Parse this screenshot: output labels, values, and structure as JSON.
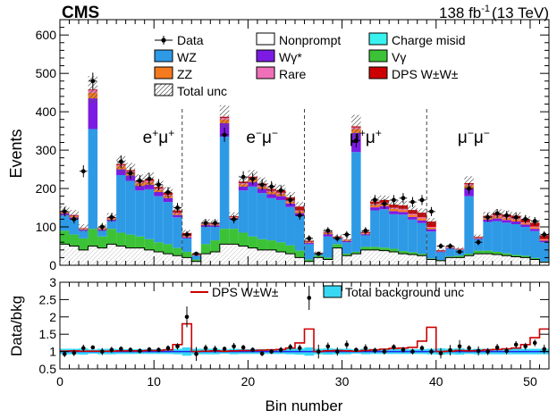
{
  "header": {
    "experiment": "CMS",
    "luminosity": "138 fb",
    "lumi_exp": "-1",
    "energy": "(13 TeV)"
  },
  "chart_data": [
    {
      "type": "bar",
      "stacked": true,
      "ylabel": "Events",
      "ylim": [
        0,
        640
      ],
      "yticks": [
        0,
        100,
        200,
        300,
        400,
        500,
        600
      ],
      "x": [
        0,
        1,
        2,
        3,
        4,
        5,
        6,
        7,
        8,
        9,
        10,
        11,
        12,
        13,
        14,
        15,
        16,
        17,
        18,
        19,
        20,
        21,
        22,
        23,
        24,
        25,
        26,
        27,
        28,
        29,
        30,
        31,
        32,
        33,
        34,
        35,
        36,
        37,
        38,
        39,
        40,
        41,
        42,
        43,
        44,
        45,
        46,
        47,
        48,
        49,
        50,
        51
      ],
      "xlim": [
        0,
        52
      ],
      "region_labels": [
        {
          "base": "e",
          "sup": "+",
          "base2": "μ",
          "sup2": "+",
          "x": 10.5
        },
        {
          "base": "e",
          "sup": "−",
          "base2": "μ",
          "sup2": "−",
          "x": 21.5
        },
        {
          "base": "μ",
          "sup": "+",
          "base2": "μ",
          "sup2": "+",
          "x": 32.5
        },
        {
          "base": "μ",
          "sup": "−",
          "base2": "μ",
          "sup2": "−",
          "x": 44
        }
      ],
      "region_dividers": [
        13,
        26,
        39
      ],
      "series": [
        {
          "name": "Nonprompt",
          "color": "#ffffff",
          "values": [
            55,
            50,
            40,
            50,
            45,
            55,
            50,
            45,
            45,
            40,
            35,
            30,
            25,
            20,
            10,
            30,
            35,
            55,
            55,
            50,
            45,
            40,
            40,
            35,
            30,
            20,
            10,
            20,
            15,
            45,
            25,
            30,
            40,
            40,
            38,
            35,
            30,
            28,
            25,
            15,
            12,
            20,
            20,
            25,
            30,
            30,
            28,
            25,
            22,
            20,
            15,
            8
          ]
        },
        {
          "name": "Vγ",
          "color": "#3cc236",
          "values": [
            35,
            30,
            30,
            45,
            30,
            40,
            35,
            35,
            30,
            28,
            25,
            25,
            20,
            15,
            5,
            25,
            30,
            40,
            40,
            35,
            30,
            28,
            25,
            25,
            22,
            18,
            5,
            5,
            5,
            10,
            5,
            5,
            8,
            8,
            8,
            8,
            7,
            6,
            5,
            3,
            2,
            3,
            5,
            5,
            8,
            8,
            7,
            6,
            5,
            5,
            4,
            2
          ]
        },
        {
          "name": "WZ",
          "color": "#2e9ae6",
          "values": [
            40,
            40,
            20,
            260,
            15,
            20,
            150,
            140,
            120,
            130,
            120,
            110,
            80,
            35,
            10,
            45,
            35,
            240,
            25,
            110,
            130,
            120,
            110,
            110,
            100,
            90,
            40,
            5,
            55,
            15,
            30,
            260,
            30,
            95,
            100,
            90,
            95,
            85,
            80,
            70,
            20,
            20,
            15,
            150,
            30,
            75,
            80,
            80,
            80,
            75,
            70,
            50
          ]
        },
        {
          "name": "Wγ*",
          "color": "#7c1be3",
          "values": [
            5,
            5,
            3,
            80,
            3,
            4,
            15,
            14,
            12,
            12,
            11,
            10,
            6,
            3,
            1,
            5,
            4,
            35,
            3,
            10,
            12,
            11,
            10,
            10,
            9,
            8,
            3,
            1,
            6,
            2,
            3,
            50,
            3,
            8,
            8,
            8,
            7,
            7,
            7,
            6,
            2,
            2,
            1,
            20,
            2,
            6,
            7,
            7,
            7,
            6,
            6,
            4
          ]
        },
        {
          "name": "ZZ",
          "color": "#f57a1e",
          "values": [
            3,
            3,
            2,
            15,
            2,
            3,
            8,
            8,
            7,
            7,
            6,
            6,
            4,
            2,
            1,
            3,
            2,
            10,
            2,
            6,
            7,
            6,
            6,
            6,
            5,
            5,
            2,
            1,
            3,
            1,
            2,
            10,
            2,
            6,
            6,
            6,
            5,
            5,
            5,
            4,
            1,
            1,
            1,
            8,
            1,
            4,
            5,
            5,
            5,
            4,
            4,
            3
          ]
        },
        {
          "name": "Rare",
          "color": "#ef70b8",
          "values": [
            1,
            1,
            1,
            6,
            1,
            1,
            3,
            3,
            3,
            3,
            3,
            3,
            2,
            1,
            0,
            1,
            1,
            4,
            1,
            3,
            3,
            3,
            3,
            3,
            3,
            2,
            1,
            0,
            1,
            0,
            1,
            4,
            1,
            3,
            3,
            3,
            3,
            3,
            3,
            2,
            0,
            1,
            0,
            3,
            1,
            2,
            3,
            3,
            3,
            2,
            2,
            1
          ]
        },
        {
          "name": "Charge misid",
          "color": "#38f2f0",
          "values": [
            0,
            0,
            0,
            0,
            0,
            0,
            0,
            0,
            0,
            0,
            0,
            0,
            0,
            0,
            0,
            0,
            0,
            0,
            0,
            0,
            0,
            0,
            0,
            0,
            0,
            0,
            0,
            0,
            0,
            0,
            0,
            0,
            0,
            0,
            0,
            0,
            0,
            0,
            0,
            0,
            0,
            0,
            0,
            0,
            0,
            0,
            0,
            0,
            0,
            0,
            0,
            0
          ]
        },
        {
          "name": "DPS W±W±",
          "color": "#cc0000",
          "values": [
            1,
            2,
            1,
            2,
            1,
            2,
            3,
            3,
            3,
            4,
            4,
            5,
            6,
            8,
            2,
            1,
            2,
            3,
            2,
            4,
            4,
            5,
            5,
            6,
            8,
            10,
            3,
            1,
            2,
            2,
            1,
            3,
            3,
            6,
            7,
            8,
            9,
            10,
            12,
            14,
            2,
            1,
            1,
            3,
            2,
            4,
            5,
            6,
            7,
            8,
            10,
            10
          ]
        }
      ],
      "total_unc_values": [
        14,
        13,
        10,
        35,
        9,
        11,
        20,
        19,
        17,
        18,
        16,
        15,
        12,
        8,
        4,
        10,
        9,
        30,
        10,
        15,
        17,
        16,
        15,
        15,
        14,
        12,
        6,
        3,
        8,
        6,
        6,
        30,
        7,
        12,
        12,
        12,
        12,
        11,
        11,
        9,
        4,
        5,
        4,
        18,
        6,
        10,
        11,
        11,
        10,
        9,
        8,
        6
      ],
      "data": [
        140,
        120,
        245,
        480,
        100,
        125,
        270,
        240,
        220,
        225,
        210,
        190,
        150,
        80,
        30,
        110,
        110,
        340,
        120,
        230,
        225,
        210,
        205,
        195,
        170,
        130,
        70,
        30,
        90,
        70,
        80,
        325,
        90,
        170,
        160,
        170,
        175,
        165,
        170,
        140,
        50,
        50,
        35,
        200,
        60,
        125,
        135,
        130,
        125,
        120,
        115,
        80
      ],
      "legend": {
        "data": "Data",
        "nonprompt": "Nonprompt",
        "charge_misid": "Charge misid",
        "wz": "WZ",
        "wgamma": "Wγ*",
        "vgamma": "Vγ",
        "zz": "ZZ",
        "rare": "Rare",
        "dps": "DPS W±W±",
        "unc": "Total unc"
      }
    },
    {
      "type": "line",
      "xlabel": "Bin number",
      "ylabel": "Data/bkg",
      "ylim": [
        0.5,
        3
      ],
      "yticks": [
        0.5,
        1,
        1.5,
        2,
        2.5,
        3
      ],
      "xticks": [
        0,
        10,
        20,
        30,
        40,
        50
      ],
      "x": [
        0,
        1,
        2,
        3,
        4,
        5,
        6,
        7,
        8,
        9,
        10,
        11,
        12,
        13,
        14,
        15,
        16,
        17,
        18,
        19,
        20,
        21,
        22,
        23,
        24,
        25,
        26,
        27,
        28,
        29,
        30,
        31,
        32,
        33,
        34,
        35,
        36,
        37,
        38,
        39,
        40,
        41,
        42,
        43,
        44,
        45,
        46,
        47,
        48,
        49,
        50,
        51
      ],
      "ratio": [
        0.93,
        0.96,
        1.1,
        1.12,
        1.0,
        1.05,
        1.08,
        1.05,
        1.02,
        1.06,
        1.05,
        1.1,
        1.15,
        2.0,
        0.93,
        1.1,
        1.07,
        1.08,
        1.15,
        1.12,
        1.05,
        0.94,
        1.0,
        1.05,
        1.13,
        1.1,
        2.55,
        1.0,
        1.15,
        1.0,
        1.2,
        1.05,
        1.1,
        1.03,
        1.0,
        1.13,
        1.05,
        1.0,
        1.1,
        1.0,
        0.95,
        1.04,
        1.15,
        1.1,
        1.02,
        1.0,
        1.12,
        1.02,
        1.2,
        1.15,
        1.25,
        1.07
      ],
      "ratio_err": [
        0.09,
        0.09,
        0.1,
        0.05,
        0.1,
        0.09,
        0.07,
        0.07,
        0.07,
        0.07,
        0.07,
        0.08,
        0.09,
        0.3,
        0.2,
        0.1,
        0.1,
        0.06,
        0.1,
        0.07,
        0.07,
        0.07,
        0.07,
        0.08,
        0.09,
        0.1,
        0.35,
        0.2,
        0.11,
        0.12,
        0.12,
        0.06,
        0.11,
        0.08,
        0.08,
        0.08,
        0.08,
        0.08,
        0.08,
        0.09,
        0.15,
        0.15,
        0.18,
        0.08,
        0.13,
        0.1,
        0.1,
        0.1,
        0.1,
        0.1,
        0.1,
        0.13
      ],
      "dps_ratio": [
        1.01,
        1.02,
        1.01,
        1.01,
        1.01,
        1.01,
        1.02,
        1.02,
        1.02,
        1.03,
        1.03,
        1.05,
        1.2,
        1.8,
        1.0,
        1.01,
        1.02,
        1.01,
        1.02,
        1.03,
        1.03,
        1.04,
        1.05,
        1.06,
        1.1,
        1.25,
        1.65,
        1.0,
        1.02,
        1.03,
        1.02,
        1.01,
        1.03,
        1.05,
        1.07,
        1.09,
        1.1,
        1.12,
        1.3,
        1.7,
        1.0,
        1.01,
        1.03,
        1.02,
        1.03,
        1.05,
        1.06,
        1.08,
        1.1,
        1.2,
        1.4,
        1.65
      ],
      "unc_band": [
        0.08,
        0.08,
        0.09,
        0.06,
        0.08,
        0.08,
        0.07,
        0.07,
        0.07,
        0.07,
        0.07,
        0.07,
        0.08,
        0.12,
        0.08,
        0.08,
        0.08,
        0.06,
        0.08,
        0.07,
        0.07,
        0.07,
        0.07,
        0.07,
        0.08,
        0.09,
        0.12,
        0.08,
        0.09,
        0.08,
        0.08,
        0.06,
        0.08,
        0.07,
        0.07,
        0.07,
        0.07,
        0.07,
        0.07,
        0.08,
        0.09,
        0.08,
        0.09,
        0.07,
        0.08,
        0.08,
        0.08,
        0.08,
        0.08,
        0.08,
        0.08,
        0.08
      ],
      "legend": {
        "dps": "DPS W±W±",
        "unc": "Total background unc"
      }
    }
  ]
}
